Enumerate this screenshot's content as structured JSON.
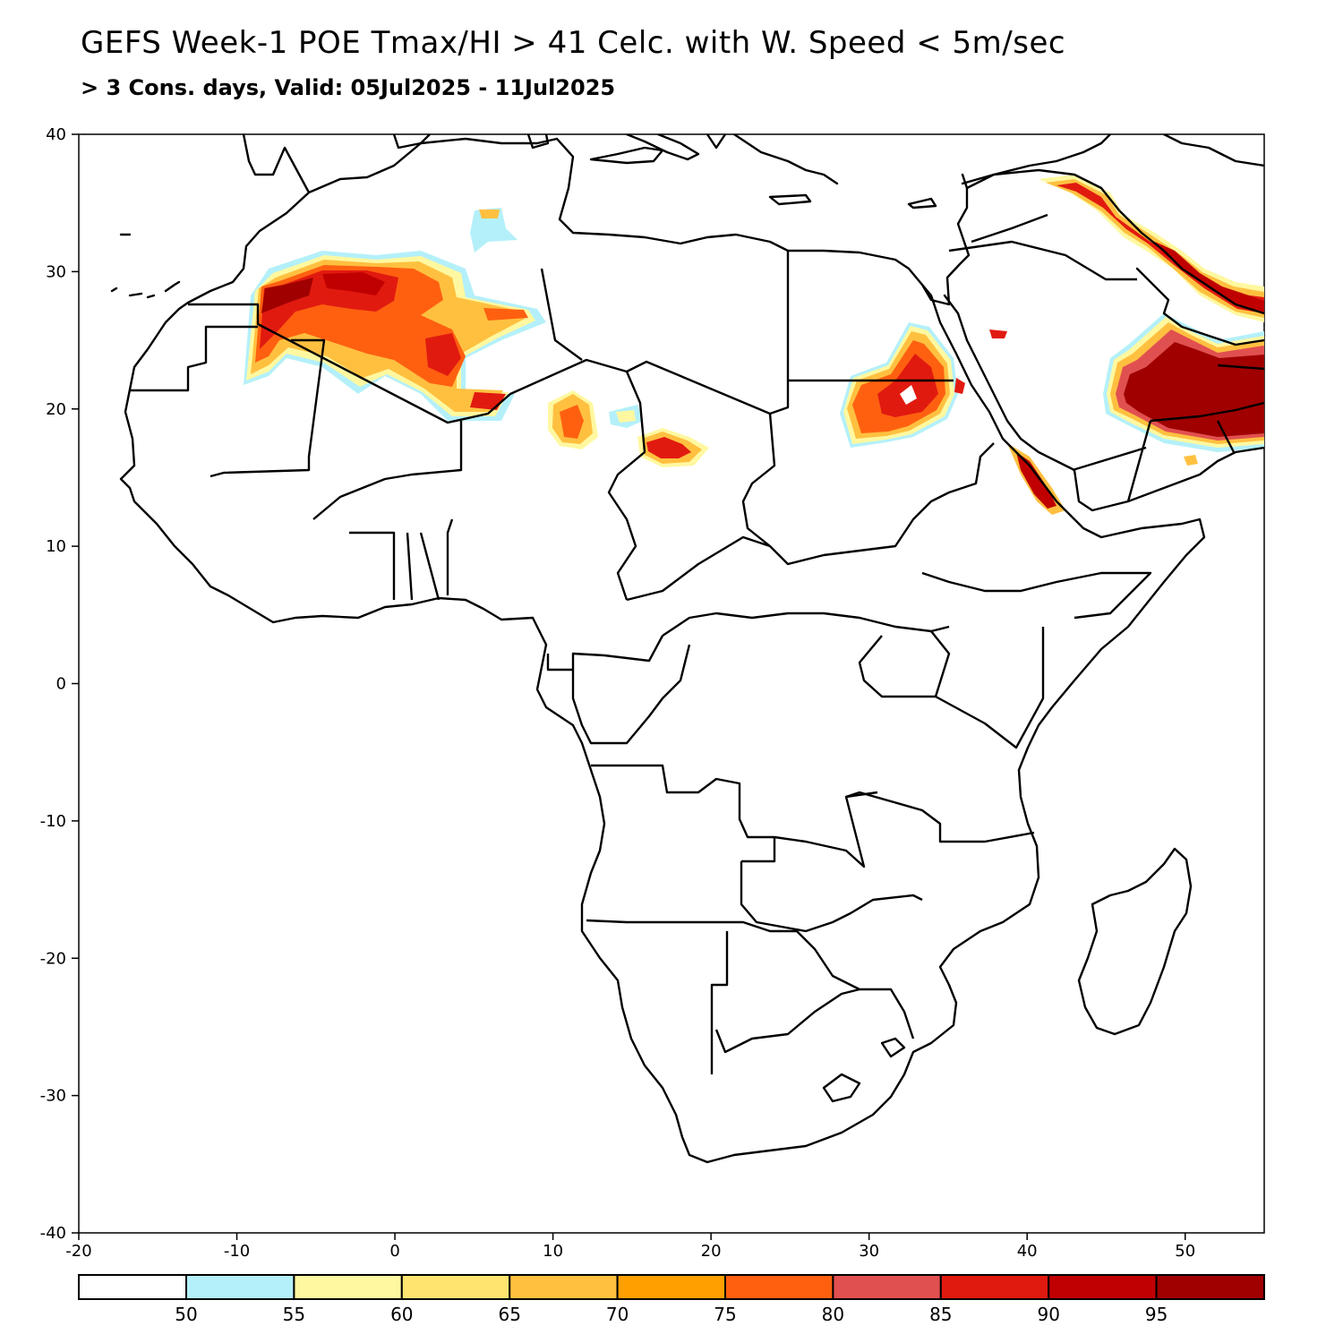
{
  "title": "GEFS Week-1 POE Tmax/HI > 41 Celc. with W. Speed < 5m/sec",
  "subtitle": "> 3 Cons. days, Valid: 05Jul2025 - 11Jul2025",
  "map": {
    "region": "Africa and Arabian Peninsula",
    "lon_range": [
      -20,
      55
    ],
    "lat_range": [
      -40,
      40
    ],
    "x_ticks": [
      "-20",
      "-10",
      "0",
      "10",
      "20",
      "30",
      "40",
      "50"
    ],
    "y_ticks": [
      "40",
      "30",
      "20",
      "10",
      "0",
      "-10",
      "-20",
      "-30",
      "-40"
    ],
    "x_tick_values": [
      -20,
      -10,
      0,
      10,
      20,
      30,
      40,
      50
    ],
    "y_tick_values": [
      40,
      30,
      20,
      10,
      0,
      -10,
      -20,
      -30,
      -40
    ]
  },
  "colorbar": {
    "labels": [
      "50",
      "55",
      "60",
      "65",
      "70",
      "75",
      "80",
      "85",
      "90",
      "95"
    ],
    "colors": [
      "#ffffff",
      "#b4f0fa",
      "#fff8a0",
      "#ffe470",
      "#ffc040",
      "#ffa000",
      "#ff6010",
      "#e15050",
      "#e11a10",
      "#c00000",
      "#a00000"
    ]
  }
}
